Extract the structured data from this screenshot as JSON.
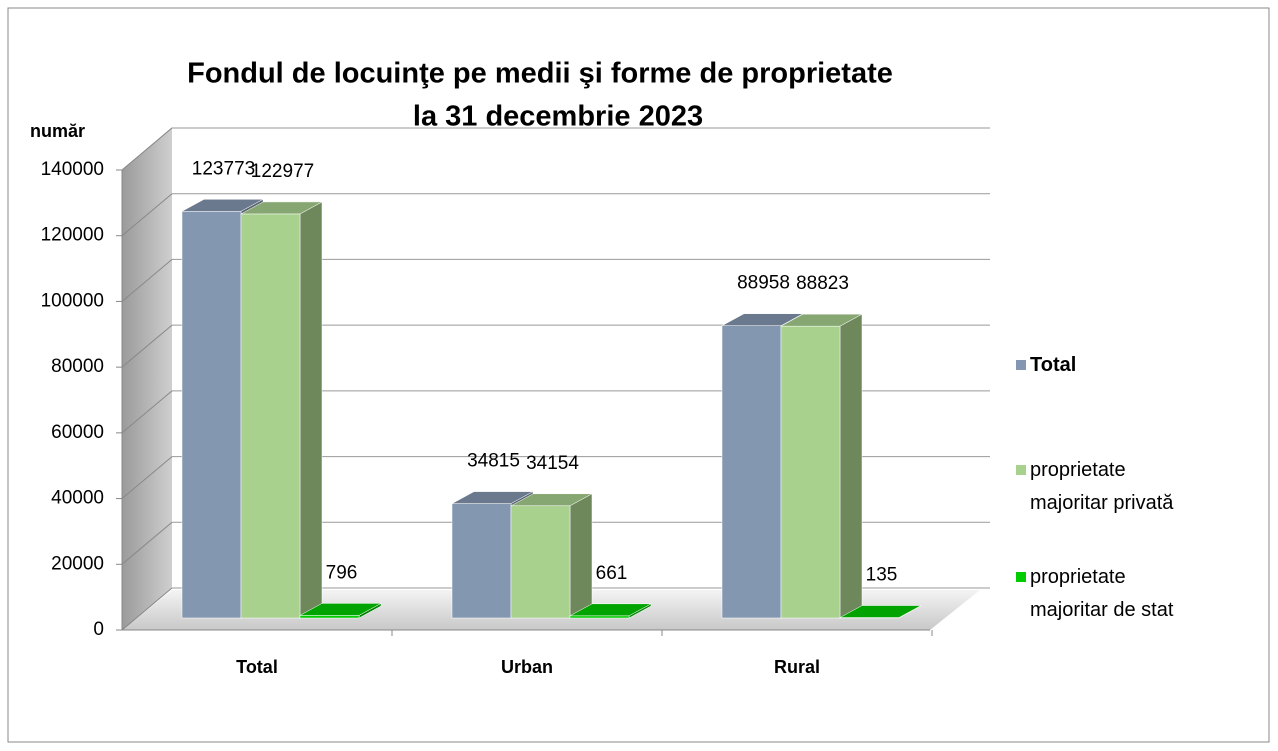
{
  "chart_data": {
    "type": "bar3d",
    "title": [
      "Fondul de locuinţe pe medii şi forme de proprietate",
      "la 31 decembrie 2023"
    ],
    "y_axis_label": "număr",
    "categories": [
      "Total",
      "Urban",
      "Rural"
    ],
    "series": [
      {
        "name": "Total",
        "color": "#8497b0",
        "values": [
          123773,
          34815,
          88958
        ]
      },
      {
        "name": "proprietate majoritar privată",
        "color": "#a9d18e",
        "values": [
          122977,
          34154,
          88823
        ]
      },
      {
        "name": "proprietate majoritar de stat",
        "color": "#00cc00",
        "values": [
          796,
          661,
          135
        ]
      }
    ],
    "ylim": [
      0,
      140000
    ],
    "yticks": [
      0,
      20000,
      40000,
      60000,
      80000,
      100000,
      120000,
      140000
    ],
    "grid": true,
    "legend": "right"
  }
}
